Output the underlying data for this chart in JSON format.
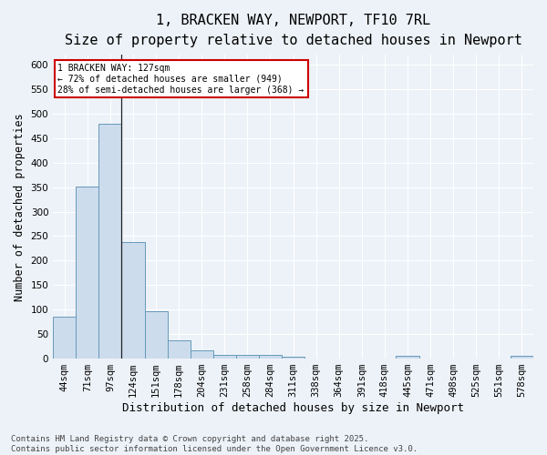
{
  "title_line1": "1, BRACKEN WAY, NEWPORT, TF10 7RL",
  "title_line2": "Size of property relative to detached houses in Newport",
  "xlabel": "Distribution of detached houses by size in Newport",
  "ylabel": "Number of detached properties",
  "categories": [
    "44sqm",
    "71sqm",
    "97sqm",
    "124sqm",
    "151sqm",
    "178sqm",
    "204sqm",
    "231sqm",
    "258sqm",
    "284sqm",
    "311sqm",
    "338sqm",
    "364sqm",
    "391sqm",
    "418sqm",
    "445sqm",
    "471sqm",
    "498sqm",
    "525sqm",
    "551sqm",
    "578sqm"
  ],
  "values": [
    85,
    352,
    480,
    237,
    96,
    37,
    16,
    7,
    8,
    7,
    4,
    0,
    0,
    0,
    0,
    5,
    0,
    0,
    0,
    0,
    5
  ],
  "bar_color": "#ccdcec",
  "bar_edge_color": "#6699bb",
  "background_color": "#edf2f8",
  "grid_color": "#ffffff",
  "ylim": [
    0,
    620
  ],
  "yticks": [
    0,
    50,
    100,
    150,
    200,
    250,
    300,
    350,
    400,
    450,
    500,
    550,
    600
  ],
  "annotation_text": "1 BRACKEN WAY: 127sqm\n← 72% of detached houses are smaller (949)\n28% of semi-detached houses are larger (368) →",
  "vline_x": 2.5,
  "annotation_box_color": "#ffffff",
  "annotation_box_edge": "#cc0000",
  "footer_line1": "Contains HM Land Registry data © Crown copyright and database right 2025.",
  "footer_line2": "Contains public sector information licensed under the Open Government Licence v3.0.",
  "title_fontsize": 11,
  "subtitle_fontsize": 9.5,
  "tick_fontsize": 7.5,
  "ylabel_fontsize": 8.5,
  "xlabel_fontsize": 9,
  "footer_fontsize": 6.5,
  "annot_fontsize": 7
}
